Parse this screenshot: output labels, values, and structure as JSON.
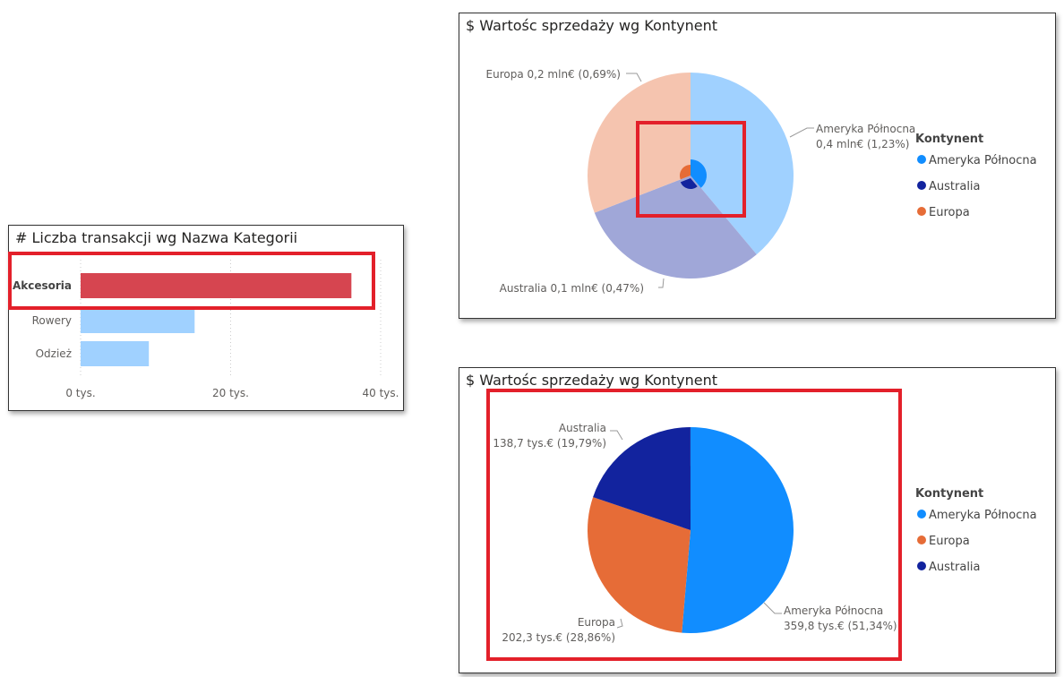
{
  "chart_data": [
    {
      "type": "bar",
      "title": "# Liczba transakcji wg Nazwa Kategorii",
      "categories": [
        "Akcesoria",
        "Rowery",
        "Odzież"
      ],
      "values": [
        36100,
        15200,
        9100
      ],
      "xlim": [
        0,
        40000
      ],
      "xticks": [
        "0 tys.",
        "20 tys.",
        "40 tys."
      ],
      "highlighted": "Akcesoria",
      "colors": {
        "highlight": "#d64550",
        "default": "#a0d1ff"
      },
      "grid": true
    },
    {
      "type": "pie",
      "title": "$ Wartośc sprzedaży wg Kontynent",
      "legend_title": "Kontynent",
      "legend": [
        "Ameryka Północna",
        "Australia",
        "Europa"
      ],
      "legend_placement": "right",
      "slices": [
        {
          "name": "Ameryka Północna",
          "share": 38.9,
          "highlight_share": 1.23,
          "label": "Ameryka Północna",
          "label2": "0,4 mln€ (1,23%)",
          "color": "#118dff",
          "faded": "#a0d1ff"
        },
        {
          "name": "Australia",
          "share": 30.2,
          "highlight_share": 0.47,
          "label": "Australia 0,1 mln€ (0,47%)",
          "color": "#12239e",
          "faded": "#a0a7d8"
        },
        {
          "name": "Europa",
          "share": 30.9,
          "highlight_share": 0.69,
          "label": "Europa 0,2 mln€ (0,69%)",
          "color": "#e66c37",
          "faded": "#f5c4af"
        }
      ]
    },
    {
      "type": "pie",
      "title": "$ Wartośc sprzedaży wg Kontynent",
      "legend_title": "Kontynent",
      "legend": [
        "Ameryka Północna",
        "Europa",
        "Australia"
      ],
      "legend_placement": "right",
      "slices": [
        {
          "name": "Ameryka Północna",
          "value": 359.8,
          "percent": 51.34,
          "label": "Ameryka Północna",
          "label2": "359,8 tys.€ (51,34%)",
          "color": "#118dff"
        },
        {
          "name": "Europa",
          "value": 202.3,
          "percent": 28.86,
          "label": "Europa",
          "label2": "202,3 tys.€ (28,86%)",
          "color": "#e66c37"
        },
        {
          "name": "Australia",
          "value": 138.7,
          "percent": 19.79,
          "label": "Australia",
          "label2": "138,7 tys.€ (19,79%)",
          "color": "#12239e"
        }
      ]
    }
  ]
}
